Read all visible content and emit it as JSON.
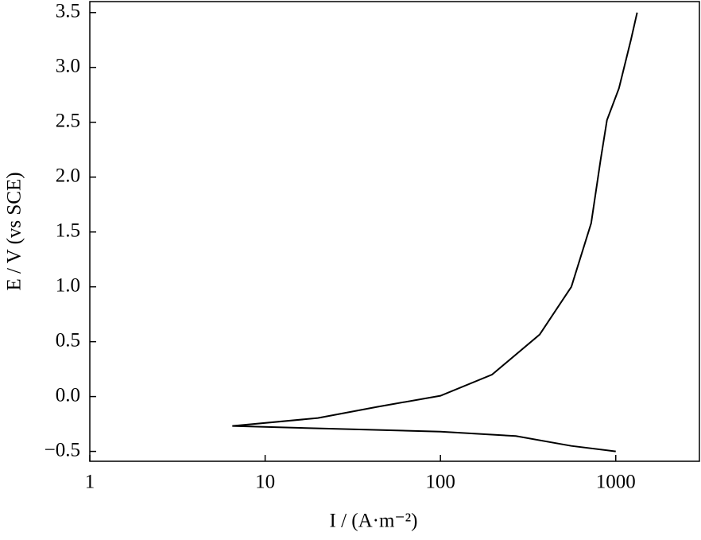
{
  "chart_data": {
    "type": "line",
    "xlabel": "I / (A·m⁻²)",
    "ylabel": "E / V (vs SCE)",
    "xscale": "log",
    "xlim": [
      1,
      3000
    ],
    "ylim": [
      -0.59,
      3.6
    ],
    "xticks": [
      1,
      10,
      100,
      1000
    ],
    "yticks": [
      {
        "value": -0.5,
        "label": "−0.5"
      },
      {
        "value": 0,
        "label": "0.0"
      },
      0.5,
      {
        "value": 1,
        "label": "1.0"
      },
      1.5,
      {
        "value": 2,
        "label": "2.0"
      },
      2.5,
      {
        "value": 3,
        "label": "3.0"
      },
      3.5
    ],
    "grid": false,
    "series": [
      {
        "color": "#000000",
        "x": [
          1000,
          558,
          269,
          100,
          20,
          6.5,
          20,
          43.5,
          100,
          197,
          368,
          558,
          724,
          820,
          891,
          1043,
          1220,
          1324
        ],
        "values": [
          -0.5,
          -0.45,
          -0.36,
          -0.32,
          -0.29,
          -0.268,
          -0.196,
          -0.094,
          0.007,
          0.2,
          0.565,
          1.0,
          1.58,
          2.16,
          2.52,
          2.81,
          3.25,
          3.5
        ]
      }
    ]
  }
}
